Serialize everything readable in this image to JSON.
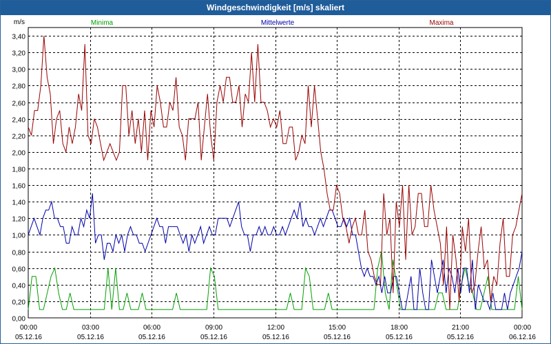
{
  "chart_data": {
    "type": "line",
    "title": "Windgeschwindigkeit [m/s] skaliert",
    "ylabel": "m/s",
    "ylim": [
      0,
      3.5
    ],
    "xlim": [
      0,
      24
    ],
    "grid": true,
    "y_ticks": [
      "0,00",
      "0,20",
      "0,40",
      "0,60",
      "0,80",
      "1,00",
      "1,20",
      "1,40",
      "1,60",
      "1,80",
      "2,00",
      "2,20",
      "2,40",
      "2,60",
      "2,80",
      "3,00",
      "3,20",
      "3,40"
    ],
    "x_ticks": [
      {
        "time": "00:00",
        "date": "05.12.16"
      },
      {
        "time": "03:00",
        "date": "05.12.16"
      },
      {
        "time": "06:00",
        "date": "05.12.16"
      },
      {
        "time": "09:00",
        "date": "05.12.16"
      },
      {
        "time": "12:00",
        "date": "05.12.16"
      },
      {
        "time": "15:00",
        "date": "05.12.16"
      },
      {
        "time": "18:00",
        "date": "05.12.16"
      },
      {
        "time": "21:00",
        "date": "05.12.16"
      },
      {
        "time": "00:00",
        "date": "06.12.16"
      }
    ],
    "series": [
      {
        "name": "Minima",
        "color": "#00a000",
        "values": [
          0.1,
          0.5,
          0.5,
          0.1,
          0.1,
          0.3,
          0.5,
          0.6,
          0.3,
          0.1,
          0.1,
          0.3,
          0.1,
          0.1,
          0.1,
          0.1,
          0.1,
          0.1,
          0.1,
          0.1,
          0.1,
          0.6,
          0.1,
          0.6,
          0.1,
          0.1,
          0.3,
          0.1,
          0.1,
          0.1,
          0.3,
          0.1,
          0.1,
          0.1,
          0.1,
          0.1,
          0.1,
          0.1,
          0.1,
          0.3,
          0.1,
          0.1,
          0.1,
          0.1,
          0.1,
          0.1,
          0.1,
          0.1,
          0.6,
          0.5,
          0.1,
          0.1,
          0.1,
          0.1,
          0.1,
          0.1,
          0.1,
          0.1,
          0.1,
          0.1,
          0.1,
          0.1,
          0.1,
          0.1,
          0.1,
          0.1,
          0.1,
          0.1,
          0.1,
          0.3,
          0.1,
          0.1,
          0.1,
          0.6,
          0.5,
          0.1,
          0.1,
          0.1,
          0.1,
          0.3,
          0.1,
          0.1,
          0.1,
          0.1,
          0.1,
          0.1,
          0.1,
          0.1,
          0.1,
          0.1,
          0.1,
          0.1,
          0.6,
          0.8,
          0.3,
          0.1,
          0.7,
          0.4,
          0.1,
          0.1,
          0.1,
          0.1,
          0.1,
          0.1,
          0.1,
          0.1,
          0.1,
          0.1,
          0.3,
          0.3,
          0.1,
          0.1,
          0.1,
          0.1,
          0.4,
          0.6,
          0.4,
          0.3,
          0.1,
          0.1,
          0.3,
          0.5,
          0.1,
          0.1,
          0.1,
          0.1,
          0.1,
          0.1,
          0.1,
          0.5,
          0.1
        ]
      },
      {
        "name": "Mittelwerte",
        "color": "#0000aa",
        "values": [
          1.0,
          1.1,
          1.2,
          1.1,
          1.0,
          1.2,
          1.3,
          1.3,
          1.4,
          1.2,
          1.2,
          1.1,
          1.1,
          0.9,
          0.9,
          1.1,
          1.0,
          1.0,
          1.2,
          1.1,
          1.3,
          1.2,
          1.5,
          0.9,
          1.0,
          1.0,
          0.7,
          0.9,
          0.9,
          0.8,
          1.0,
          0.9,
          1.0,
          0.8,
          1.0,
          1.1,
          1.0,
          1.0,
          0.9,
          0.9,
          0.8,
          0.9,
          1.0,
          1.1,
          1.2,
          1.1,
          1.1,
          0.9,
          1.1,
          1.1,
          1.1,
          1.1,
          1.0,
          0.9,
          1.0,
          0.8,
          1.0,
          0.9,
          1.0,
          1.1,
          0.9,
          1.0,
          1.1,
          1.0,
          1.0,
          1.2,
          1.2,
          1.2,
          1.2,
          1.1,
          1.2,
          1.3,
          1.4,
          1.1,
          1.0,
          1.0,
          0.8,
          1.0,
          1.0,
          1.1,
          1.0,
          1.1,
          1.0,
          1.0,
          1.1,
          1.0,
          1.0,
          1.1,
          1.0,
          1.1,
          1.2,
          1.3,
          1.2,
          1.4,
          1.1,
          1.2,
          1.1,
          1.1,
          1.0,
          1.1,
          1.2,
          1.1,
          1.2,
          1.3,
          1.3,
          1.2,
          1.1,
          1.1,
          1.2,
          1.1,
          1.2,
          1.0,
          1.0,
          0.8,
          0.6,
          0.5,
          0.6,
          0.5,
          0.5,
          0.4,
          0.5,
          0.3,
          0.5,
          0.3,
          0.3,
          0.5,
          0.5,
          0.3,
          0.1,
          0.1,
          0.3,
          0.5,
          0.1,
          0.1,
          0.6,
          0.3,
          0.1,
          0.1,
          0.7,
          0.5,
          0.3,
          0.5,
          0.7,
          0.3,
          0.6,
          0.5,
          0.3,
          0.6,
          0.3,
          0.6,
          0.6,
          0.3,
          0.7,
          0.1,
          0.4,
          0.3,
          0.2,
          0.2,
          0.1,
          0.3,
          0.1,
          0.1,
          0.1,
          0.3,
          0.1,
          0.3,
          0.4,
          0.5,
          0.6,
          0.8
        ]
      },
      {
        "name": "Maxima",
        "color": "#990000",
        "values": [
          2.3,
          2.2,
          2.5,
          2.5,
          2.8,
          3.4,
          2.9,
          2.7,
          2.1,
          2.4,
          2.5,
          2.1,
          2.0,
          2.3,
          2.1,
          2.3,
          2.7,
          2.5,
          3.3,
          2.2,
          2.1,
          2.4,
          2.3,
          2.1,
          1.9,
          2.0,
          2.1,
          2.0,
          1.9,
          2.0,
          2.8,
          2.8,
          2.2,
          2.5,
          2.1,
          2.4,
          2.0,
          2.5,
          1.9,
          2.5,
          2.3,
          2.8,
          2.6,
          2.3,
          2.3,
          2.6,
          2.5,
          2.9,
          2.3,
          2.2,
          1.9,
          2.4,
          2.4,
          2.4,
          2.6,
          1.9,
          2.3,
          2.7,
          2.2,
          1.9,
          2.6,
          2.8,
          2.6,
          2.9,
          2.9,
          2.6,
          2.6,
          2.8,
          2.3,
          2.7,
          2.6,
          3.2,
          2.6,
          3.3,
          2.6,
          2.6,
          2.5,
          2.3,
          2.4,
          2.3,
          2.5,
          2.1,
          2.1,
          2.3,
          2.3,
          1.9,
          2.0,
          2.2,
          2.1,
          2.8,
          2.3,
          2.8,
          2.4,
          2.0,
          1.8,
          1.5,
          1.3,
          1.3,
          1.6,
          1.5,
          1.2,
          1.1,
          0.9,
          1.1,
          1.2,
          1.0,
          1.0,
          1.3,
          0.8,
          0.7,
          0.5,
          0.4,
          0.4,
          1.5,
          1.0,
          1.2,
          0.3,
          1.4,
          1.1,
          1.6,
          0.7,
          1.6,
          1.0,
          1.1,
          1.5,
          1.5,
          1.1,
          1.1,
          1.6,
          1.3,
          1.1,
          0.9,
          0.4,
          1.1,
          0.1,
          1.0,
          0.7,
          0.2,
          1.1,
          0.8,
          1.2,
          0.3,
          0.4,
          0.8,
          1.1,
          0.6,
          0.7,
          0.2,
          0.5,
          0.4,
          0.9,
          1.2,
          0.5,
          0.5,
          1.0,
          1.1,
          1.3,
          1.5
        ]
      }
    ]
  }
}
